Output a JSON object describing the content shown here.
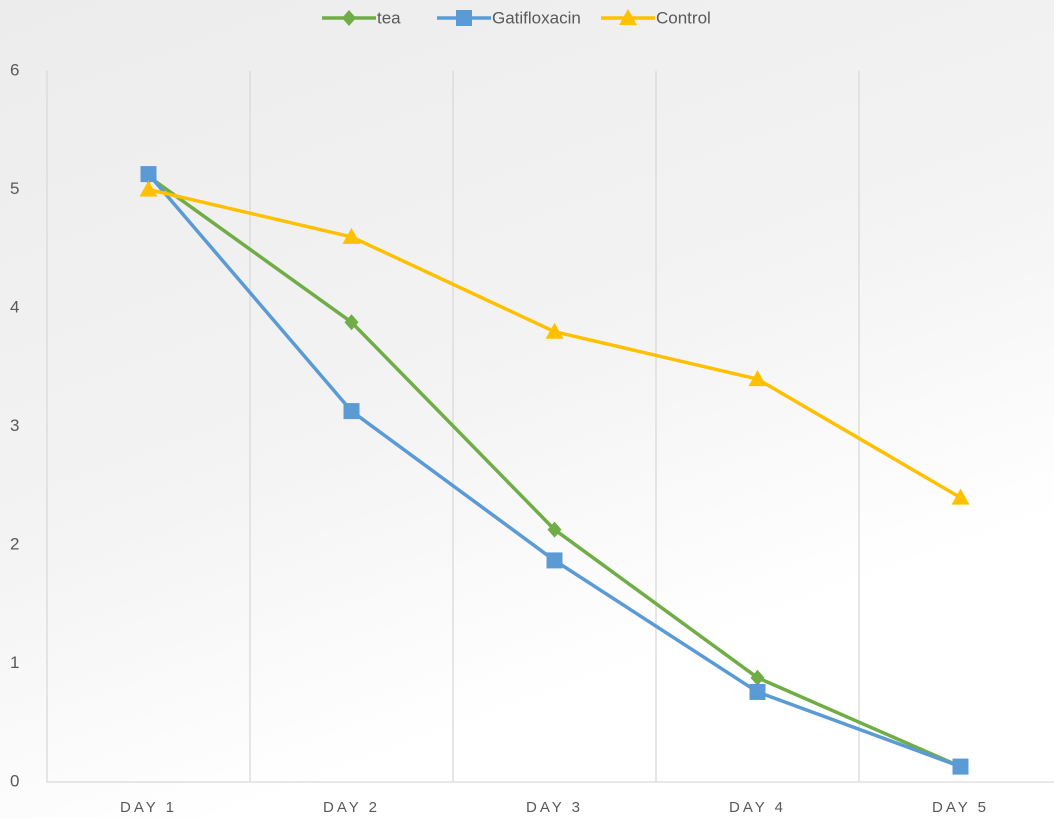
{
  "chart_data": {
    "type": "line",
    "categories": [
      "DAY 1",
      "DAY 2",
      "DAY 3",
      "DAY 4",
      "DAY 5"
    ],
    "series": [
      {
        "name": "tea",
        "color": "#70ad47",
        "marker": "diamond",
        "values": [
          5.11,
          3.88,
          2.13,
          0.88,
          0.13
        ]
      },
      {
        "name": "Gatifloxacin",
        "color": "#5b9bd5",
        "marker": "square",
        "values": [
          5.13,
          3.13,
          1.87,
          0.76,
          0.13
        ]
      },
      {
        "name": "Control",
        "color": "#ffc000",
        "marker": "triangle",
        "values": [
          5.0,
          4.6,
          3.8,
          3.4,
          2.4
        ]
      }
    ],
    "ylim": [
      0,
      6
    ],
    "yticks": [
      0,
      1,
      2,
      3,
      4,
      5,
      6
    ],
    "legend": "top"
  }
}
